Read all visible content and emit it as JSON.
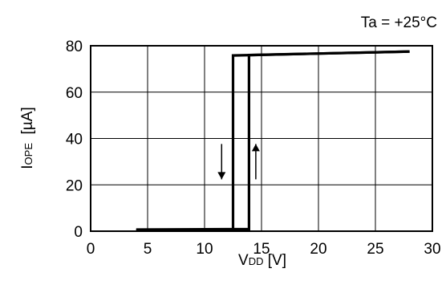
{
  "condition_label": "Ta = +25°C",
  "chart_data": {
    "type": "line",
    "title": "",
    "xlabel": {
      "main": "V",
      "sub": "DD",
      "unit": " [V]"
    },
    "ylabel": {
      "main": "I",
      "sub": "OPE",
      "unit": "  [µA]"
    },
    "xlim": [
      0,
      30
    ],
    "ylim": [
      0,
      80
    ],
    "xticks": [
      0,
      5,
      10,
      15,
      20,
      25,
      30
    ],
    "yticks": [
      0,
      20,
      40,
      60,
      80
    ],
    "grid": true,
    "series": [
      {
        "direction": "rising",
        "points": [
          [
            4,
            0.7
          ],
          [
            13.9,
            0.9
          ],
          [
            13.9,
            76
          ],
          [
            28,
            77.5
          ]
        ]
      },
      {
        "direction": "falling",
        "points": [
          [
            28,
            77.5
          ],
          [
            12.5,
            75.8
          ],
          [
            12.5,
            0.5
          ],
          [
            4,
            0.5
          ]
        ]
      }
    ],
    "annotations": [
      {
        "type": "arrow",
        "direction": "down",
        "x": 11.5,
        "y": 30
      },
      {
        "type": "arrow",
        "direction": "up",
        "x": 14.5,
        "y": 30
      }
    ]
  }
}
